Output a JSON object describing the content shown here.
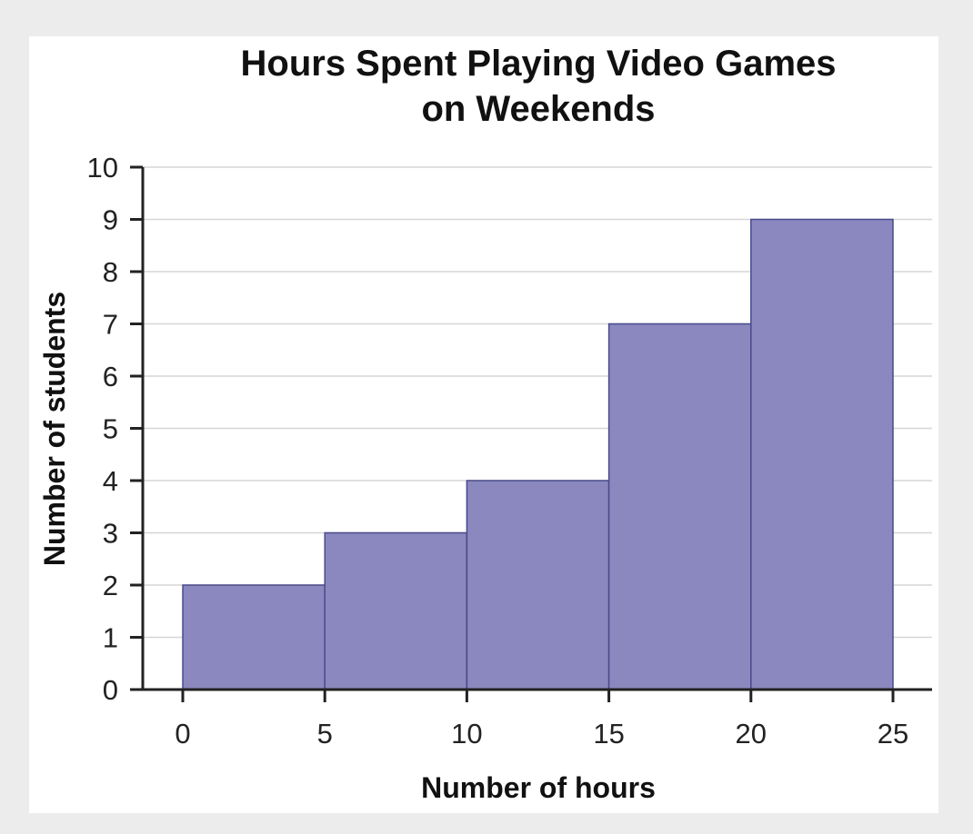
{
  "chart_data": {
    "type": "bar",
    "title_lines": [
      "Hours Spent Playing Video Games",
      "on Weekends"
    ],
    "xlabel": "Number of hours",
    "ylabel": "Number of students",
    "bins": [
      {
        "from": 0,
        "to": 5,
        "value": 2
      },
      {
        "from": 5,
        "to": 10,
        "value": 3
      },
      {
        "from": 10,
        "to": 15,
        "value": 4
      },
      {
        "from": 15,
        "to": 20,
        "value": 7
      },
      {
        "from": 20,
        "to": 25,
        "value": 9
      }
    ],
    "x_ticks": [
      0,
      5,
      10,
      15,
      20,
      25
    ],
    "y_ticks": [
      0,
      1,
      2,
      3,
      4,
      5,
      6,
      7,
      8,
      9,
      10
    ],
    "xlim": [
      0,
      25
    ],
    "ylim": [
      0,
      10
    ],
    "grid": true,
    "bar_color": "#8a88be"
  }
}
